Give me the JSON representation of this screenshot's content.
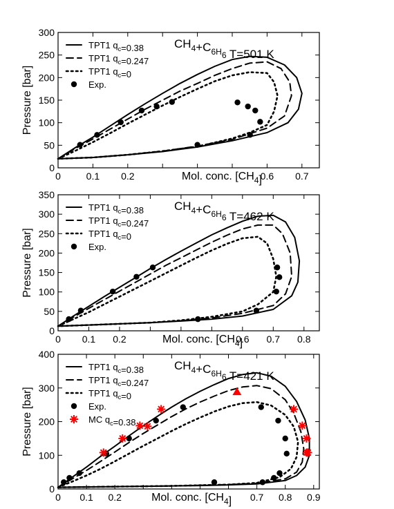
{
  "chart_data": [
    {
      "type": "line",
      "title": "CH_4+C_6H_6  T=501 K",
      "xlabel": "Mol. conc. [CH_4]",
      "ylabel": "Pressure [bar]",
      "xlim": [
        0,
        0.75
      ],
      "ylim": [
        0,
        300
      ],
      "xticks": [
        0,
        0.1,
        0.2,
        0.3,
        0.4,
        0.5,
        0.6,
        0.7
      ],
      "xtick_labels": [
        "0",
        "0.1",
        "0.2",
        "",
        "",
        "",
        "0.6",
        "0.7"
      ],
      "yticks": [
        0,
        50,
        100,
        150,
        200,
        250,
        300
      ],
      "ytick_labels": [
        "0",
        "50",
        "100",
        "150",
        "200",
        "250",
        "300"
      ],
      "legend_position": "top-left",
      "series": [
        {
          "name": "TPT1 q_c=0.38",
          "style": "solid",
          "x": [
            0.0,
            0.05,
            0.1,
            0.15,
            0.2,
            0.25,
            0.3,
            0.35,
            0.4,
            0.45,
            0.5,
            0.55,
            0.6,
            0.65,
            0.685,
            0.7,
            0.69,
            0.66,
            0.6,
            0.5,
            0.4,
            0.3,
            0.2,
            0.1,
            0.0
          ],
          "y": [
            20,
            45,
            68,
            93,
            118,
            142,
            165,
            187,
            207,
            225,
            240,
            247,
            245,
            228,
            200,
            165,
            130,
            100,
            78,
            60,
            46,
            36,
            29,
            23,
            20
          ]
        },
        {
          "name": "TPT1 q_c=0.247",
          "style": "dashed",
          "x": [
            0.0,
            0.05,
            0.1,
            0.15,
            0.2,
            0.25,
            0.3,
            0.35,
            0.4,
            0.45,
            0.5,
            0.55,
            0.6,
            0.64,
            0.665,
            0.67,
            0.65,
            0.6,
            0.5,
            0.4,
            0.3,
            0.2,
            0.1,
            0.0
          ],
          "y": [
            20,
            43,
            64,
            86,
            108,
            130,
            150,
            170,
            187,
            205,
            220,
            232,
            235,
            220,
            190,
            160,
            115,
            88,
            63,
            48,
            37,
            29,
            23,
            20
          ]
        },
        {
          "name": "TPT1 q_c=0",
          "style": "dotted",
          "x": [
            0.0,
            0.05,
            0.1,
            0.15,
            0.2,
            0.25,
            0.3,
            0.35,
            0.4,
            0.45,
            0.5,
            0.55,
            0.6,
            0.62,
            0.63,
            0.62,
            0.6,
            0.55,
            0.5,
            0.4,
            0.3,
            0.2,
            0.1,
            0.0
          ],
          "y": [
            20,
            38,
            57,
            77,
            98,
            118,
            138,
            157,
            175,
            192,
            205,
            212,
            210,
            190,
            160,
            125,
            95,
            78,
            65,
            47,
            37,
            29,
            23,
            20
          ]
        },
        {
          "name": "Exp.",
          "style": "markers-circle",
          "x": [
            0.063,
            0.112,
            0.18,
            0.24,
            0.283,
            0.327,
            0.515,
            0.545,
            0.566,
            0.58,
            0.551,
            0.4
          ],
          "y": [
            51,
            73,
            101,
            127,
            136,
            146,
            145,
            136,
            127,
            102,
            73,
            51
          ]
        }
      ]
    },
    {
      "type": "line",
      "title": "CH_4+C_6H_6  T=462 K",
      "xlabel": "Mol. conc. [CH_4]",
      "ylabel": "Pressure [bar]",
      "xlim": [
        0,
        0.85
      ],
      "ylim": [
        0,
        350
      ],
      "xticks": [
        0,
        0.1,
        0.2,
        0.3,
        0.4,
        0.5,
        0.6,
        0.7,
        0.8
      ],
      "xtick_labels": [
        "0",
        "0.1",
        "0.2",
        "",
        "",
        "",
        "0.6",
        "0.7",
        "0.8"
      ],
      "yticks": [
        0,
        50,
        100,
        150,
        200,
        250,
        300,
        350
      ],
      "ytick_labels": [
        "0",
        "50",
        "100",
        "150",
        "200",
        "250",
        "300",
        "350"
      ],
      "legend_position": "top-left",
      "series": [
        {
          "name": "TPT1 q_c=0.38",
          "style": "solid",
          "x": [
            0.0,
            0.05,
            0.1,
            0.15,
            0.2,
            0.25,
            0.3,
            0.35,
            0.4,
            0.45,
            0.5,
            0.55,
            0.6,
            0.65,
            0.7,
            0.74,
            0.77,
            0.785,
            0.78,
            0.76,
            0.7,
            0.6,
            0.5,
            0.4,
            0.3,
            0.2,
            0.1,
            0.0
          ],
          "y": [
            12,
            38,
            63,
            88,
            112,
            136,
            160,
            183,
            205,
            226,
            247,
            265,
            282,
            295,
            297,
            280,
            240,
            180,
            125,
            90,
            55,
            38,
            30,
            25,
            21,
            18,
            15,
            12
          ]
        },
        {
          "name": "TPT1 q_c=0.247",
          "style": "dashed",
          "x": [
            0.0,
            0.05,
            0.1,
            0.15,
            0.2,
            0.25,
            0.3,
            0.35,
            0.4,
            0.45,
            0.5,
            0.55,
            0.6,
            0.65,
            0.7,
            0.73,
            0.755,
            0.76,
            0.74,
            0.7,
            0.6,
            0.5,
            0.4,
            0.3,
            0.2,
            0.1,
            0.0
          ],
          "y": [
            12,
            35,
            58,
            80,
            102,
            124,
            146,
            168,
            188,
            208,
            228,
            246,
            262,
            272,
            272,
            250,
            200,
            140,
            95,
            65,
            45,
            33,
            26,
            21,
            18,
            15,
            12
          ]
        },
        {
          "name": "TPT1 q_c=0",
          "style": "dotted",
          "x": [
            0.0,
            0.05,
            0.1,
            0.15,
            0.2,
            0.25,
            0.3,
            0.35,
            0.4,
            0.45,
            0.5,
            0.55,
            0.6,
            0.65,
            0.68,
            0.7,
            0.71,
            0.7,
            0.65,
            0.6,
            0.5,
            0.4,
            0.3,
            0.2,
            0.1,
            0.0
          ],
          "y": [
            12,
            30,
            48,
            68,
            88,
            108,
            128,
            148,
            168,
            188,
            207,
            224,
            238,
            242,
            225,
            185,
            140,
            100,
            68,
            50,
            36,
            27,
            21,
            18,
            15,
            12
          ]
        },
        {
          "name": "Exp.",
          "style": "markers-circle",
          "x": [
            0.035,
            0.074,
            0.178,
            0.255,
            0.308,
            0.713,
            0.72,
            0.71,
            0.645,
            0.455
          ],
          "y": [
            30,
            52,
            101,
            139,
            163,
            163,
            138,
            101,
            52,
            30
          ]
        }
      ]
    },
    {
      "type": "line",
      "title": "CH_4+C_6H_6  T=421 K",
      "xlabel": "Mol. conc. [CH_4]",
      "ylabel": "Pressure [bar]",
      "xlim": [
        0,
        0.92
      ],
      "ylim": [
        0,
        400
      ],
      "xticks": [
        0,
        0.1,
        0.2,
        0.3,
        0.4,
        0.5,
        0.6,
        0.7,
        0.8,
        0.9
      ],
      "xtick_labels": [
        "0",
        "0.1",
        "0.2",
        "",
        "",
        "",
        "",
        "0.7",
        "0.8",
        "0.9"
      ],
      "yticks": [
        0,
        100,
        200,
        300,
        400
      ],
      "ytick_labels": [
        "0",
        "100",
        "200",
        "300",
        "400"
      ],
      "legend_position": "top-left",
      "series": [
        {
          "name": "TPT1 q_c=0.38",
          "style": "solid",
          "x": [
            0.0,
            0.05,
            0.1,
            0.15,
            0.2,
            0.25,
            0.3,
            0.35,
            0.4,
            0.45,
            0.5,
            0.55,
            0.6,
            0.65,
            0.7,
            0.75,
            0.8,
            0.84,
            0.87,
            0.885,
            0.885,
            0.87,
            0.84,
            0.8,
            0.7,
            0.6,
            0.5,
            0.4,
            0.3,
            0.2,
            0.1,
            0.0
          ],
          "y": [
            5,
            35,
            65,
            97,
            127,
            158,
            188,
            216,
            243,
            268,
            290,
            310,
            328,
            340,
            345,
            335,
            305,
            260,
            205,
            150,
            100,
            65,
            40,
            25,
            15,
            12,
            10,
            9,
            8,
            7,
            6,
            5
          ]
        },
        {
          "name": "TPT1 q_c=0.247",
          "style": "dashed",
          "x": [
            0.0,
            0.05,
            0.1,
            0.15,
            0.2,
            0.25,
            0.3,
            0.35,
            0.4,
            0.45,
            0.5,
            0.55,
            0.6,
            0.65,
            0.7,
            0.75,
            0.8,
            0.83,
            0.855,
            0.865,
            0.86,
            0.84,
            0.8,
            0.7,
            0.6,
            0.5,
            0.4,
            0.3,
            0.2,
            0.1,
            0.0
          ],
          "y": [
            5,
            30,
            55,
            82,
            110,
            138,
            165,
            190,
            215,
            238,
            258,
            276,
            292,
            303,
            307,
            298,
            265,
            225,
            170,
            120,
            80,
            50,
            30,
            17,
            13,
            11,
            9,
            8,
            7,
            6,
            5
          ]
        },
        {
          "name": "TPT1 q_c=0",
          "style": "dotted",
          "x": [
            0.0,
            0.05,
            0.1,
            0.15,
            0.2,
            0.25,
            0.3,
            0.35,
            0.4,
            0.45,
            0.5,
            0.55,
            0.6,
            0.65,
            0.7,
            0.75,
            0.8,
            0.83,
            0.845,
            0.84,
            0.82,
            0.78,
            0.7,
            0.6,
            0.5,
            0.4,
            0.3,
            0.2,
            0.1,
            0.0
          ],
          "y": [
            5,
            22,
            40,
            60,
            82,
            105,
            128,
            150,
            172,
            193,
            212,
            230,
            245,
            255,
            258,
            248,
            220,
            185,
            140,
            95,
            60,
            35,
            18,
            13,
            11,
            9,
            8,
            7,
            6,
            5
          ]
        },
        {
          "name": "Exp.",
          "style": "markers-circle",
          "x": [
            0.02,
            0.04,
            0.075,
            0.17,
            0.25,
            0.345,
            0.44,
            0.715,
            0.775,
            0.8,
            0.805,
            0.78,
            0.76,
            0.72,
            0.55
          ],
          "y": [
            20,
            33,
            47,
            105,
            150,
            203,
            243,
            243,
            203,
            150,
            105,
            47,
            33,
            20,
            20
          ]
        },
        {
          "name": "",
          "style": "marker-triangle",
          "x": [
            0.63
          ],
          "y": [
            288
          ]
        },
        {
          "name": "MC q_c=0.38",
          "style": "markers-star",
          "x": [
            0.16,
            0.227,
            0.288,
            0.315,
            0.363,
            0.83,
            0.86,
            0.875,
            0.875,
            0.88
          ],
          "y": [
            108,
            150,
            188,
            186,
            237,
            237,
            188,
            150,
            108,
            108
          ]
        }
      ]
    }
  ],
  "colors": {
    "line": "#000000",
    "mc_marker": "#ff0000",
    "triangle_marker": "#ff0000"
  }
}
